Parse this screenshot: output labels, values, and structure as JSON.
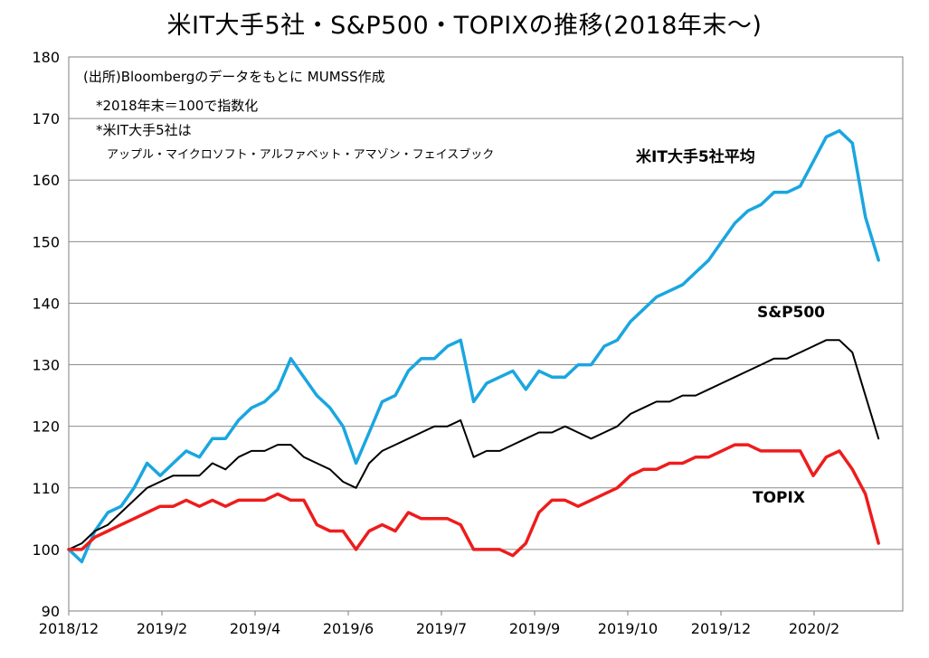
{
  "chart_data": {
    "type": "line",
    "title": "米IT大手5社・S&P500・TOPIXの推移(2018年末〜)",
    "xlabel": "",
    "ylabel": "",
    "ylim": [
      90,
      180
    ],
    "yticks": [
      90,
      100,
      110,
      120,
      130,
      140,
      150,
      160,
      170,
      180
    ],
    "xtick_labels": [
      "2018/12",
      "2019/2",
      "2019/4",
      "2019/6",
      "2019/7",
      "2019/9",
      "2019/10",
      "2019/12",
      "2020/2"
    ],
    "grid": "horizontal",
    "annotations": [
      "(出所)Bloombergのデータをもとに MUMSS作成",
      "*2018年末＝100で指数化",
      "*米IT大手5社は",
      "アップル・マイクロソフト・アルファベット・アマゾン・フェイスブック"
    ],
    "series": [
      {
        "name": "米IT大手5社平均",
        "color": "#1aa6e0",
        "x": [
          "2018-12-31",
          "2019-01-07",
          "2019-01-14",
          "2019-01-21",
          "2019-01-28",
          "2019-02-04",
          "2019-02-11",
          "2019-02-18",
          "2019-02-25",
          "2019-03-04",
          "2019-03-11",
          "2019-03-18",
          "2019-03-25",
          "2019-04-01",
          "2019-04-08",
          "2019-04-15",
          "2019-04-22",
          "2019-04-29",
          "2019-05-06",
          "2019-05-13",
          "2019-05-20",
          "2019-05-27",
          "2019-06-03",
          "2019-06-10",
          "2019-06-17",
          "2019-06-24",
          "2019-07-01",
          "2019-07-08",
          "2019-07-15",
          "2019-07-22",
          "2019-07-29",
          "2019-08-05",
          "2019-08-12",
          "2019-08-19",
          "2019-08-26",
          "2019-09-02",
          "2019-09-09",
          "2019-09-16",
          "2019-09-23",
          "2019-09-30",
          "2019-10-07",
          "2019-10-14",
          "2019-10-21",
          "2019-10-28",
          "2019-11-04",
          "2019-11-11",
          "2019-11-18",
          "2019-11-25",
          "2019-12-02",
          "2019-12-09",
          "2019-12-16",
          "2019-12-23",
          "2019-12-30",
          "2020-01-06",
          "2020-01-13",
          "2020-01-20",
          "2020-01-27",
          "2020-02-03",
          "2020-02-10",
          "2020-02-17",
          "2020-02-24",
          "2020-03-02",
          "2020-03-09"
        ],
        "values": [
          100,
          98,
          103,
          106,
          107,
          110,
          114,
          112,
          114,
          116,
          115,
          118,
          118,
          121,
          123,
          124,
          126,
          131,
          128,
          125,
          123,
          120,
          114,
          119,
          124,
          125,
          129,
          131,
          131,
          133,
          134,
          124,
          127,
          128,
          129,
          126,
          129,
          128,
          128,
          130,
          130,
          133,
          134,
          137,
          139,
          141,
          142,
          143,
          145,
          147,
          150,
          153,
          155,
          156,
          158,
          158,
          159,
          163,
          167,
          168,
          166,
          154,
          147
        ]
      },
      {
        "name": "S&P500",
        "color": "#000000",
        "x": [
          "2018-12-31",
          "2019-01-07",
          "2019-01-14",
          "2019-01-21",
          "2019-01-28",
          "2019-02-04",
          "2019-02-11",
          "2019-02-18",
          "2019-02-25",
          "2019-03-04",
          "2019-03-11",
          "2019-03-18",
          "2019-03-25",
          "2019-04-01",
          "2019-04-08",
          "2019-04-15",
          "2019-04-22",
          "2019-04-29",
          "2019-05-06",
          "2019-05-13",
          "2019-05-20",
          "2019-05-27",
          "2019-06-03",
          "2019-06-10",
          "2019-06-17",
          "2019-06-24",
          "2019-07-01",
          "2019-07-08",
          "2019-07-15",
          "2019-07-22",
          "2019-07-29",
          "2019-08-05",
          "2019-08-12",
          "2019-08-19",
          "2019-08-26",
          "2019-09-02",
          "2019-09-09",
          "2019-09-16",
          "2019-09-23",
          "2019-09-30",
          "2019-10-07",
          "2019-10-14",
          "2019-10-21",
          "2019-10-28",
          "2019-11-04",
          "2019-11-11",
          "2019-11-18",
          "2019-11-25",
          "2019-12-02",
          "2019-12-09",
          "2019-12-16",
          "2019-12-23",
          "2019-12-30",
          "2020-01-06",
          "2020-01-13",
          "2020-01-20",
          "2020-01-27",
          "2020-02-03",
          "2020-02-10",
          "2020-02-17",
          "2020-02-24",
          "2020-03-02",
          "2020-03-09"
        ],
        "values": [
          100,
          101,
          103,
          104,
          106,
          108,
          110,
          111,
          112,
          112,
          112,
          114,
          113,
          115,
          116,
          116,
          117,
          117,
          115,
          114,
          113,
          111,
          110,
          114,
          116,
          117,
          118,
          119,
          120,
          120,
          121,
          115,
          116,
          116,
          117,
          118,
          119,
          119,
          120,
          119,
          118,
          119,
          120,
          122,
          123,
          124,
          124,
          125,
          125,
          126,
          127,
          128,
          129,
          130,
          131,
          131,
          132,
          133,
          134,
          134,
          132,
          125,
          118
        ]
      },
      {
        "name": "TOPIX",
        "color": "#ee1c1c",
        "x": [
          "2018-12-31",
          "2019-01-07",
          "2019-01-14",
          "2019-01-21",
          "2019-01-28",
          "2019-02-04",
          "2019-02-11",
          "2019-02-18",
          "2019-02-25",
          "2019-03-04",
          "2019-03-11",
          "2019-03-18",
          "2019-03-25",
          "2019-04-01",
          "2019-04-08",
          "2019-04-15",
          "2019-04-22",
          "2019-04-29",
          "2019-05-06",
          "2019-05-13",
          "2019-05-20",
          "2019-05-27",
          "2019-06-03",
          "2019-06-10",
          "2019-06-17",
          "2019-06-24",
          "2019-07-01",
          "2019-07-08",
          "2019-07-15",
          "2019-07-22",
          "2019-07-29",
          "2019-08-05",
          "2019-08-12",
          "2019-08-19",
          "2019-08-26",
          "2019-09-02",
          "2019-09-09",
          "2019-09-16",
          "2019-09-23",
          "2019-09-30",
          "2019-10-07",
          "2019-10-14",
          "2019-10-21",
          "2019-10-28",
          "2019-11-04",
          "2019-11-11",
          "2019-11-18",
          "2019-11-25",
          "2019-12-02",
          "2019-12-09",
          "2019-12-16",
          "2019-12-23",
          "2019-12-30",
          "2020-01-06",
          "2020-01-13",
          "2020-01-20",
          "2020-01-27",
          "2020-02-03",
          "2020-02-10",
          "2020-02-17",
          "2020-02-24",
          "2020-03-02",
          "2020-03-09"
        ],
        "values": [
          100,
          100,
          102,
          103,
          104,
          105,
          106,
          107,
          107,
          108,
          107,
          108,
          107,
          108,
          108,
          108,
          109,
          108,
          108,
          104,
          103,
          103,
          100,
          103,
          104,
          103,
          106,
          105,
          105,
          105,
          104,
          100,
          100,
          100,
          99,
          101,
          106,
          108,
          108,
          107,
          108,
          109,
          110,
          112,
          113,
          113,
          114,
          114,
          115,
          115,
          116,
          117,
          117,
          116,
          116,
          116,
          116,
          112,
          115,
          116,
          113,
          109,
          101
        ]
      }
    ]
  }
}
